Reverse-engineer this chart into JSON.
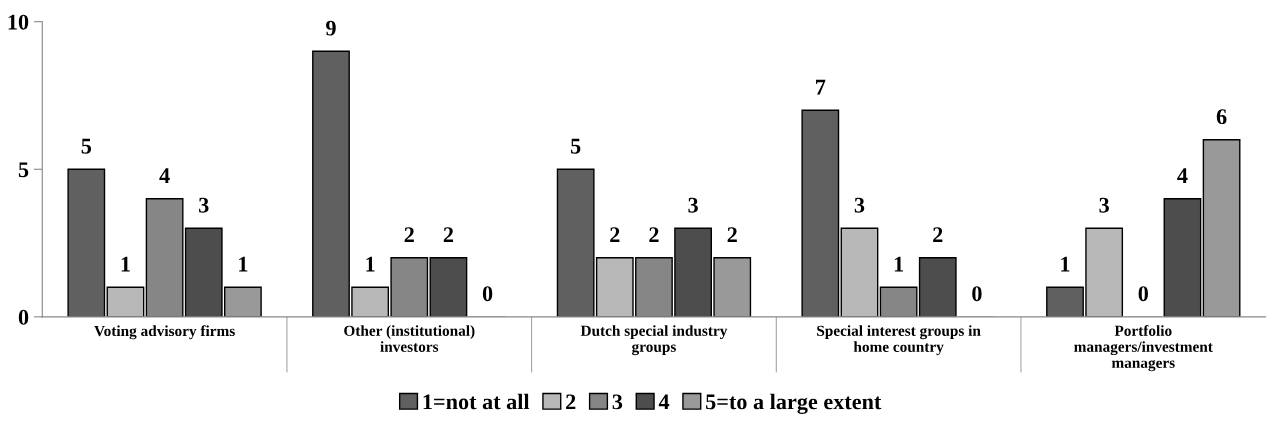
{
  "chart_data": {
    "type": "bar",
    "categories": [
      "Voting advisory firms",
      "Other (institutional)\ninvestors",
      "Dutch special industry\ngroups",
      "Special interest groups in\nhome country",
      "Portfolio\nmanagers/investment\nmanagers"
    ],
    "series": [
      {
        "name": "1=not at all",
        "color": "#606060",
        "values": [
          5,
          9,
          5,
          7,
          1
        ]
      },
      {
        "name": "2",
        "color": "#b8b8b8",
        "values": [
          1,
          1,
          2,
          3,
          3
        ]
      },
      {
        "name": "3",
        "color": "#868686",
        "values": [
          4,
          2,
          2,
          1,
          0
        ]
      },
      {
        "name": "4",
        "color": "#4d4d4d",
        "values": [
          3,
          2,
          3,
          2,
          4
        ]
      },
      {
        "name": "5=to a large extent",
        "color": "#999999",
        "values": [
          1,
          0,
          2,
          0,
          6
        ]
      }
    ],
    "ylim": [
      0,
      10
    ],
    "yticks": [
      0,
      5,
      10
    ],
    "grid": false,
    "legend": "bottom",
    "data_labels": true
  }
}
